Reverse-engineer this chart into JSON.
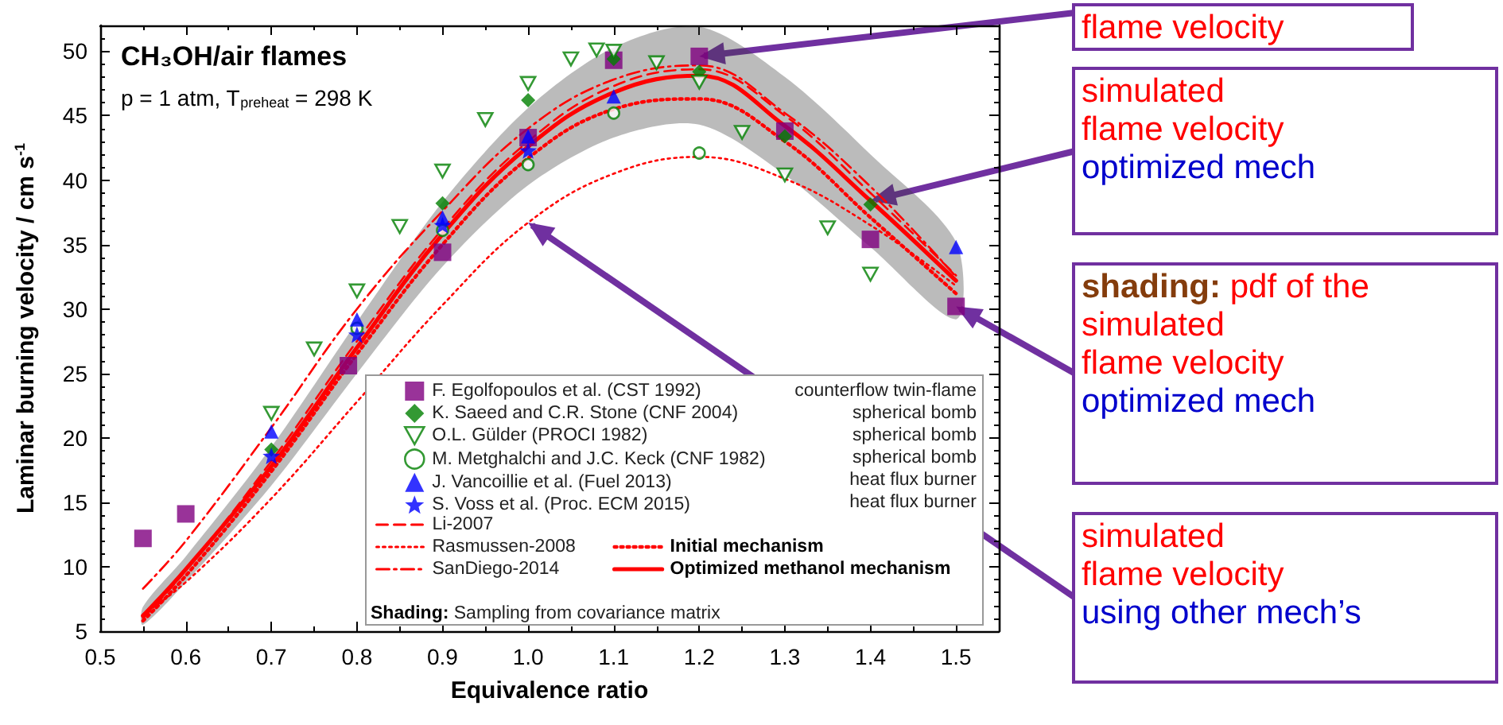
{
  "chart_data": {
    "type": "scatter",
    "title": "CH₃OH/air flames",
    "subtitle": "p = 1 atm, T$_{preheat}$ = 298 K",
    "xlabel": "Equivalence ratio",
    "ylabel": "Laminar burning velocity / cm s$^{-1}$",
    "xlim": [
      0.5,
      1.55
    ],
    "ylim": [
      5,
      52
    ],
    "xticks": [
      0.5,
      0.6,
      0.7,
      0.8,
      0.9,
      {
        "value": 1.0,
        "label": "1.0"
      },
      1.1,
      1.2,
      1.3,
      1.4,
      1.5
    ],
    "yticks": [
      5,
      10,
      15,
      20,
      25,
      30,
      35,
      40,
      45,
      50
    ],
    "legend": "bottom right",
    "series": [
      {
        "name": "F. Egolfopoulos et al. (CST 1992)",
        "marker": "square",
        "color": "#800080",
        "x": [
          0.55,
          0.6,
          0.79,
          0.9,
          1.0,
          1.1,
          1.2,
          1.3,
          1.4,
          1.5
        ],
        "values": [
          12.2,
          14.1,
          25.6,
          34.4,
          43.3,
          49.3,
          49.6,
          43.8,
          35.4,
          30.2
        ]
      },
      {
        "name": "K. Saeed and C.R. Stone (CNF 2004)",
        "marker": "diamond",
        "color": "#008000",
        "x": [
          0.7,
          0.9,
          1.0,
          1.1,
          1.2,
          1.3,
          1.4
        ],
        "values": [
          19.1,
          38.2,
          46.2,
          49.4,
          48.4,
          43.4,
          38.1
        ]
      },
      {
        "name": "O.L. Gülder (PROCI 1982)",
        "marker": "triangle-down-open",
        "color": "#008000",
        "x": [
          0.7,
          0.75,
          0.8,
          0.85,
          0.9,
          0.95,
          1.0,
          1.05,
          1.08,
          1.1,
          1.15,
          1.2,
          1.25,
          1.3,
          1.35,
          1.4
        ],
        "values": [
          21.9,
          26.9,
          31.4,
          36.4,
          40.7,
          44.7,
          47.5,
          49.4,
          50.1,
          50.0,
          49.1,
          47.6,
          43.7,
          40.4,
          36.3,
          32.7
        ]
      },
      {
        "name": "M. Metghalchi and J.C. Keck (CNF 1982)",
        "marker": "circle-open",
        "color": "#008000",
        "x": [
          0.8,
          0.9,
          1.0,
          1.1,
          1.2
        ],
        "values": [
          28.5,
          36.1,
          41.2,
          45.2,
          42.1
        ]
      },
      {
        "name": "J. Vancoillie et al. (Fuel 2013)",
        "marker": "triangle",
        "color": "#0000ff",
        "x": [
          0.7,
          0.8,
          0.9,
          1.0,
          1.1,
          1.5
        ],
        "values": [
          20.5,
          29.2,
          37.1,
          43.4,
          46.5,
          34.8
        ]
      },
      {
        "name": "S. Voss et al. (Proc. ECM 2015)",
        "marker": "star",
        "color": "#0000ff",
        "x": [
          0.7,
          0.8,
          0.9,
          1.0
        ],
        "values": [
          18.6,
          28.0,
          36.5,
          42.3
        ]
      },
      {
        "name": "Li-2007",
        "type": "line",
        "line_style": "dashed",
        "color": "#ff0000",
        "x": [
          0.55,
          0.6,
          0.7,
          0.8,
          0.9,
          1.0,
          1.1,
          1.2,
          1.3,
          1.4,
          1.5
        ],
        "values": [
          6.0,
          9.7,
          18.2,
          27.5,
          36.2,
          43.0,
          47.3,
          48.6,
          45.0,
          39.0,
          32.6
        ]
      },
      {
        "name": "Rasmussen-2008",
        "type": "line",
        "line_style": "dotted",
        "color": "#ff0000",
        "x": [
          0.55,
          0.6,
          0.7,
          0.8,
          0.9,
          1.0,
          1.1,
          1.2,
          1.3,
          1.4,
          1.5
        ],
        "values": [
          6.3,
          8.8,
          15.3,
          22.8,
          30.3,
          36.7,
          40.5,
          41.8,
          40.1,
          36.5,
          31.8
        ]
      },
      {
        "name": "SanDiego-2014",
        "type": "line",
        "line_style": "dashdot",
        "color": "#ff0000",
        "x": [
          0.55,
          0.6,
          0.7,
          0.8,
          0.9,
          1.0,
          1.1,
          1.2,
          1.3,
          1.4,
          1.5
        ],
        "values": [
          8.3,
          12.0,
          20.8,
          30.0,
          37.6,
          44.0,
          47.8,
          48.9,
          45.2,
          39.5,
          32.5
        ]
      },
      {
        "name": "Initial mechanism",
        "type": "line",
        "line_style": "dotted",
        "color": "#ff0000",
        "x": [
          0.55,
          0.6,
          0.7,
          0.8,
          0.9,
          1.0,
          1.1,
          1.2,
          1.3,
          1.4,
          1.5
        ],
        "values": [
          5.8,
          9.3,
          17.4,
          26.5,
          35.0,
          41.7,
          45.5,
          46.3,
          43.0,
          37.1,
          31.2
        ]
      },
      {
        "name": "Optimized methanol mechanism",
        "type": "line",
        "line_style": "solid",
        "color": "#ff0000",
        "x": [
          0.55,
          0.6,
          0.7,
          0.8,
          0.9,
          1.0,
          1.1,
          1.2,
          1.3,
          1.4,
          1.5
        ],
        "values": [
          6.2,
          9.8,
          17.8,
          27.0,
          35.8,
          42.6,
          46.8,
          48.1,
          44.2,
          38.4,
          32.2
        ],
        "lower": [
          5.5,
          8.8,
          16.3,
          25.0,
          33.3,
          39.6,
          43.3,
          44.3,
          40.4,
          34.8,
          29.2
        ],
        "upper": [
          6.9,
          10.8,
          19.3,
          29.0,
          38.3,
          45.6,
          50.3,
          51.9,
          48.0,
          42.0,
          35.2
        ]
      }
    ],
    "annotations": [
      "counterflow twin-flame",
      "spherical bomb",
      "spherical bomb",
      "spherical bomb",
      "heat flux burner",
      "heat flux burner",
      "Shading: Sampling from covariance matrix",
      {
        "text": "flame velocity",
        "x": 1.2,
        "y": 49.6
      },
      {
        "text": "simulated\nflame velocity\noptimized mech",
        "x": 1.4,
        "y": 38.4
      },
      {
        "text": "shading: pdf of the\nsimulated\nflame velocity\noptimized mech",
        "x": 1.5,
        "y": 30.2
      },
      {
        "text": "simulated\nflame velocity\nusing other mech’s",
        "x": 1.0,
        "y": 36.7
      }
    ]
  }
}
